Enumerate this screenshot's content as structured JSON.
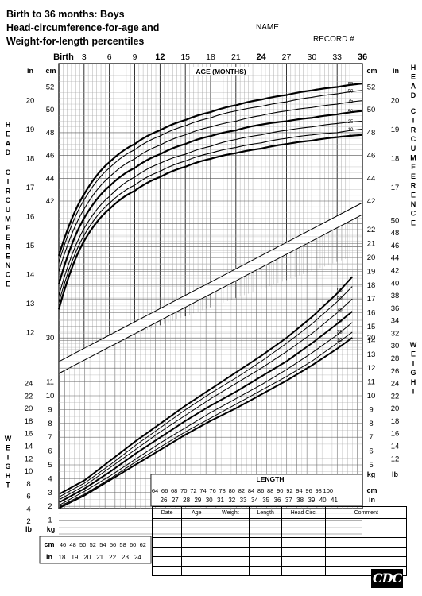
{
  "header": {
    "title_lines": [
      "Birth to 36 months: Boys",
      "Head-circumference-for-age and",
      "Weight-for-length percentiles"
    ],
    "name_label": "NAME",
    "record_label": "RECORD #"
  },
  "chart_data": [
    {
      "type": "line",
      "title": "Head-circumference-for-age",
      "xlabel": "AGE (MONTHS)",
      "ylabel": "HEAD CIRCUMFERENCE",
      "x_ticks": [
        "Birth",
        "3",
        "6",
        "9",
        "12",
        "15",
        "18",
        "21",
        "24",
        "27",
        "30",
        "33",
        "36"
      ],
      "x": [
        0,
        3,
        6,
        9,
        12,
        15,
        18,
        21,
        24,
        27,
        30,
        33,
        36
      ],
      "xlim": [
        0,
        36
      ],
      "ylim_cm": [
        29,
        53
      ],
      "y_ticks_cm": [
        "30",
        "42",
        "44",
        "46",
        "48",
        "50",
        "52"
      ],
      "y_ticks_in": [
        "12",
        "13",
        "14",
        "15",
        "16",
        "17",
        "18",
        "19",
        "20"
      ],
      "unit_left_top": "in",
      "unit_left": "cm",
      "unit_right": "cm",
      "unit_right_top": "in",
      "series": [
        {
          "name": "95",
          "values": [
            37.2,
            42.6,
            45.4,
            47.0,
            48.2,
            49.1,
            49.8,
            50.4,
            50.9,
            51.3,
            51.7,
            52.0,
            52.3
          ]
        },
        {
          "name": "90",
          "values": [
            36.6,
            42.1,
            44.9,
            46.5,
            47.7,
            48.6,
            49.3,
            49.9,
            50.3,
            50.7,
            51.1,
            51.4,
            51.7
          ]
        },
        {
          "name": "75",
          "values": [
            35.8,
            41.3,
            44.1,
            45.7,
            46.9,
            47.8,
            48.5,
            49.0,
            49.5,
            49.9,
            50.2,
            50.5,
            50.8
          ]
        },
        {
          "name": "50",
          "values": [
            34.7,
            40.5,
            43.3,
            44.9,
            46.1,
            47.0,
            47.7,
            48.2,
            48.7,
            49.0,
            49.3,
            49.6,
            49.9
          ]
        },
        {
          "name": "25",
          "values": [
            33.7,
            39.6,
            42.4,
            44.1,
            45.3,
            46.1,
            46.8,
            47.4,
            47.8,
            48.2,
            48.5,
            48.8,
            49.0
          ]
        },
        {
          "name": "10",
          "values": [
            33.1,
            39.0,
            41.8,
            43.4,
            44.6,
            45.5,
            46.2,
            46.7,
            47.1,
            47.5,
            47.8,
            48.0,
            48.3
          ]
        },
        {
          "name": "5",
          "values": [
            32.5,
            38.5,
            41.3,
            42.9,
            44.1,
            45.0,
            45.7,
            46.2,
            46.6,
            47.0,
            47.3,
            47.6,
            47.8
          ]
        }
      ],
      "grid": true
    },
    {
      "type": "line",
      "title": "Weight-for-length",
      "xlabel": "LENGTH",
      "ylabel": "WEIGHT",
      "x_ticks_cm": [
        "46",
        "48",
        "50",
        "52",
        "54",
        "56",
        "58",
        "60",
        "62",
        "64",
        "66",
        "68",
        "70",
        "72",
        "74",
        "76",
        "78",
        "80",
        "82",
        "84",
        "86",
        "88",
        "90",
        "92",
        "94",
        "96",
        "98",
        "100"
      ],
      "x_ticks_in": [
        "18",
        "19",
        "20",
        "21",
        "22",
        "23",
        "24",
        "26",
        "27",
        "28",
        "29",
        "30",
        "31",
        "32",
        "33",
        "34",
        "35",
        "36",
        "37",
        "38",
        "39",
        "40",
        "41"
      ],
      "xlim": [
        45,
        103
      ],
      "ylim_kg": [
        0,
        23
      ],
      "y_ticks_kg_left": [
        "1",
        "2",
        "3",
        "4",
        "5",
        "6",
        "7",
        "8",
        "9",
        "10",
        "11"
      ],
      "y_ticks_lb_left": [
        "2",
        "4",
        "6",
        "8",
        "10",
        "12",
        "14",
        "16",
        "18",
        "20",
        "22",
        "24"
      ],
      "y_ticks_kg_right": [
        "5",
        "6",
        "7",
        "8",
        "9",
        "10",
        "11",
        "12",
        "13",
        "14",
        "15",
        "16",
        "17",
        "18",
        "19",
        "20",
        "21",
        "22"
      ],
      "y_ticks_lb_right": [
        "12",
        "14",
        "16",
        "18",
        "20",
        "22",
        "24",
        "26",
        "28",
        "30",
        "32",
        "34",
        "36",
        "38",
        "40",
        "42",
        "44",
        "46",
        "48",
        "50"
      ],
      "unit_kg": "kg",
      "unit_lb": "lb",
      "unit_cm": "cm",
      "unit_in": "in",
      "x": [
        45,
        50,
        55,
        60,
        65,
        70,
        75,
        80,
        85,
        90,
        95,
        100,
        103
      ],
      "series": [
        {
          "name": "95",
          "values": [
            2.9,
            3.9,
            5.3,
            6.7,
            8.0,
            9.3,
            10.5,
            11.7,
            12.9,
            14.2,
            15.7,
            17.4,
            18.6
          ]
        },
        {
          "name": "90",
          "values": [
            2.7,
            3.7,
            5.0,
            6.4,
            7.7,
            9.0,
            10.2,
            11.3,
            12.5,
            13.8,
            15.2,
            16.8,
            17.9
          ]
        },
        {
          "name": "75",
          "values": [
            2.5,
            3.5,
            4.8,
            6.1,
            7.4,
            8.6,
            9.8,
            10.9,
            12.0,
            13.2,
            14.5,
            16.0,
            17.0
          ]
        },
        {
          "name": "50",
          "values": [
            2.3,
            3.3,
            4.5,
            5.8,
            7.0,
            8.2,
            9.3,
            10.3,
            11.4,
            12.5,
            13.8,
            15.2,
            16.1
          ]
        },
        {
          "name": "25",
          "values": [
            2.1,
            3.1,
            4.2,
            5.4,
            6.6,
            7.7,
            8.8,
            9.8,
            10.8,
            11.9,
            13.1,
            14.4,
            15.3
          ]
        },
        {
          "name": "10",
          "values": [
            2.0,
            2.9,
            4.0,
            5.2,
            6.3,
            7.4,
            8.4,
            9.4,
            10.4,
            11.4,
            12.5,
            13.8,
            14.6
          ]
        },
        {
          "name": "5",
          "values": [
            1.9,
            2.8,
            3.9,
            5.0,
            6.1,
            7.2,
            8.2,
            9.1,
            10.1,
            11.1,
            12.2,
            13.4,
            14.2
          ]
        }
      ],
      "grid": true
    }
  ],
  "record_table": {
    "headers": [
      "Date",
      "Age",
      "Weight",
      "Length",
      "Head Circ.",
      "Comment"
    ],
    "rows": 6
  },
  "logo": "CDC",
  "colors": {
    "ink": "#000000",
    "grid": "#888888",
    "paper": "#ffffff"
  }
}
